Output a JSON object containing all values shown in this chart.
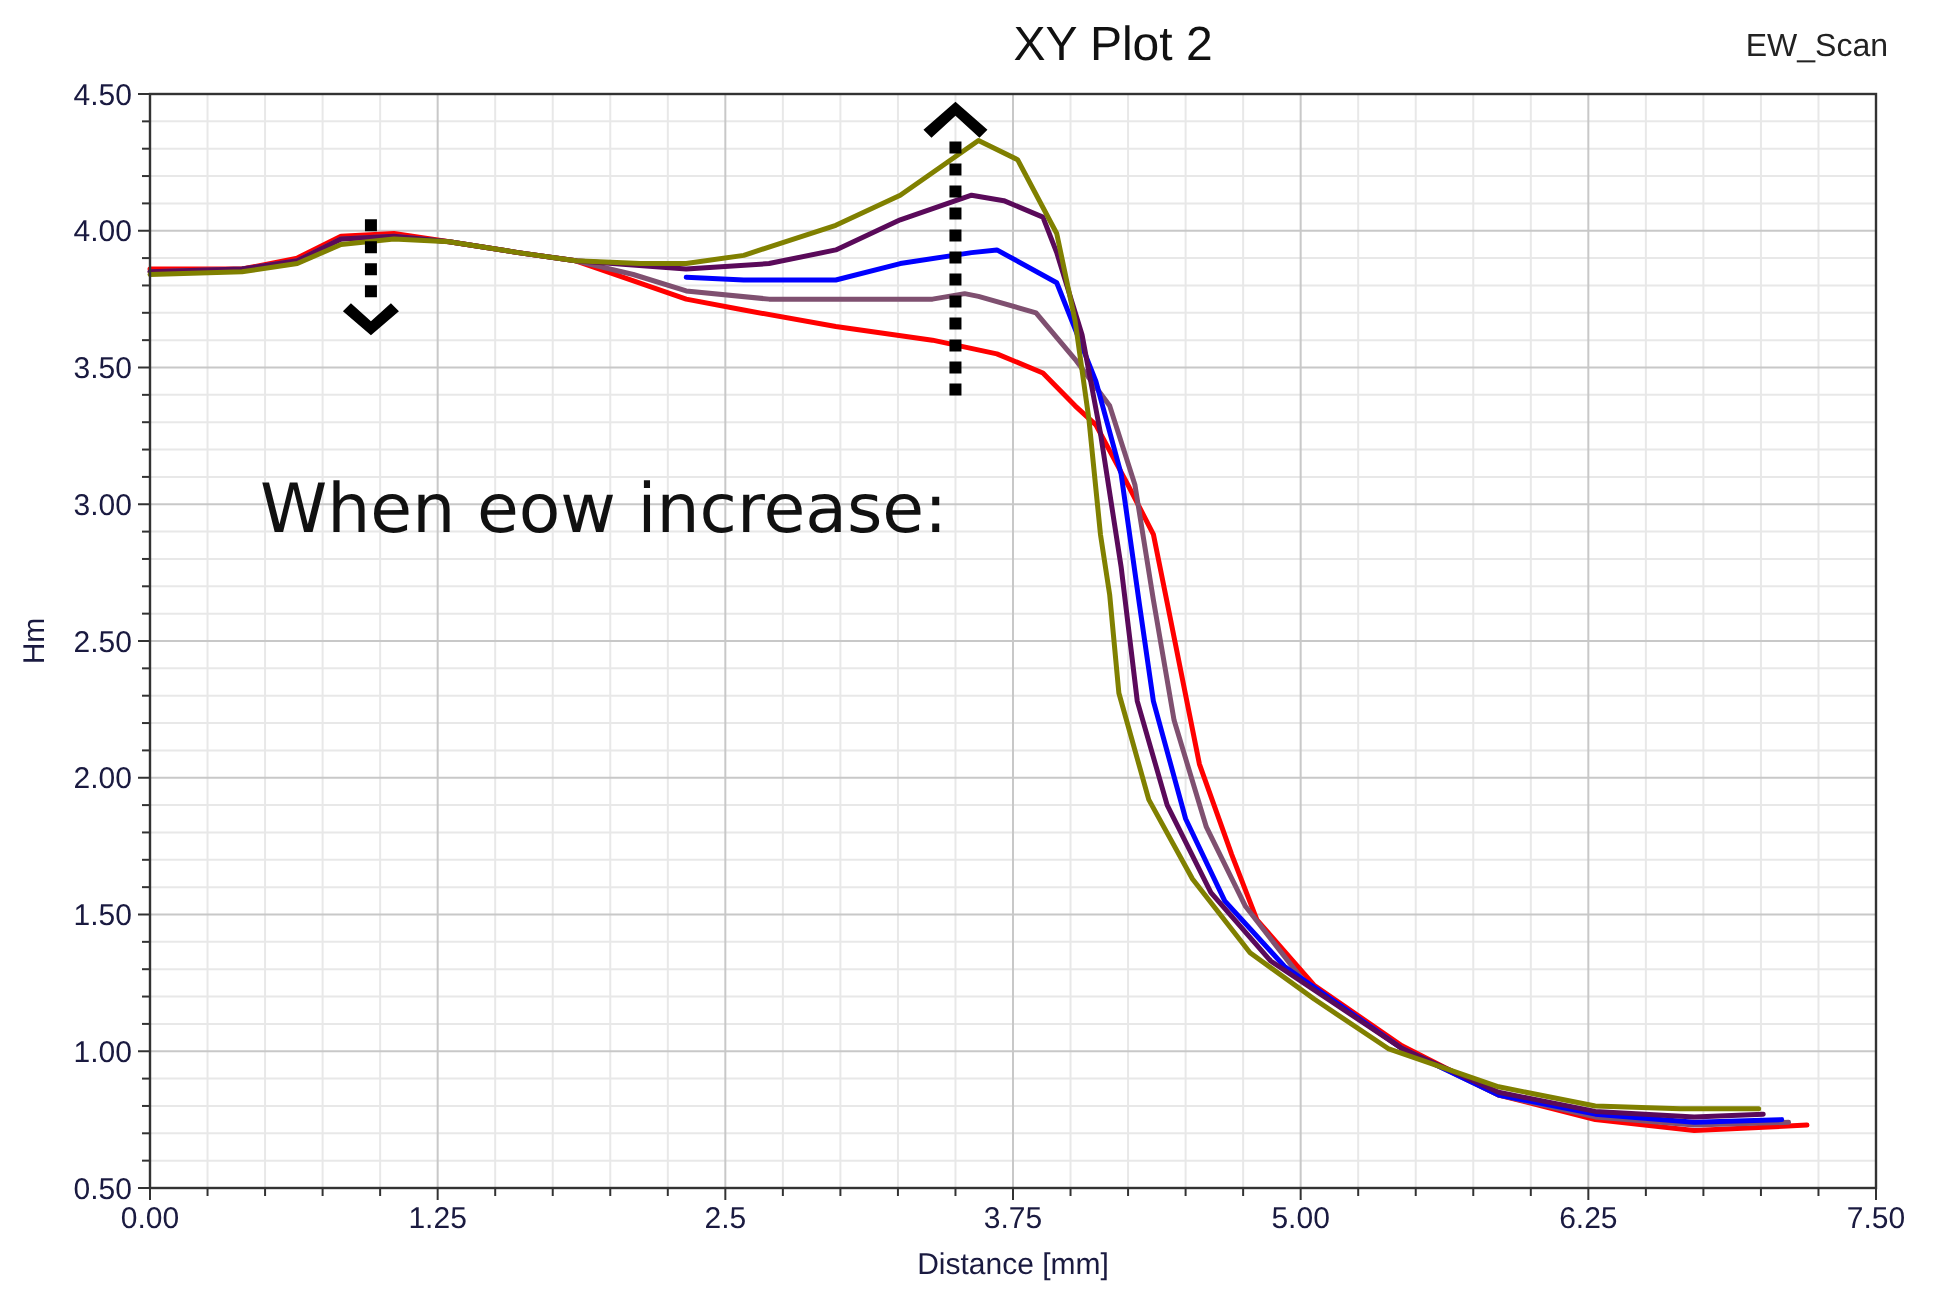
{
  "chart_data": {
    "type": "line",
    "title": "XY Plot 2",
    "xlabel": "Distance [mm]",
    "ylabel": "Hm",
    "legend_title": "EW_Scan",
    "grid": true,
    "line_style": "solid",
    "marker": "none",
    "xlim": [
      0,
      7.5
    ],
    "ylim": [
      0.5,
      4.5
    ],
    "xticks": [
      {
        "value": 0,
        "label": "0.00"
      },
      1.25,
      2.5,
      3.75,
      {
        "value": 5,
        "label": "5.00"
      },
      6.25,
      {
        "value": 7.5,
        "label": "7.50"
      }
    ],
    "yticks": [
      {
        "value": 0.5,
        "label": "0.50"
      },
      {
        "value": 1,
        "label": "1.00"
      },
      {
        "value": 1.5,
        "label": "1.50"
      },
      {
        "value": 2,
        "label": "2.00"
      },
      {
        "value": 2.5,
        "label": "2.50"
      },
      {
        "value": 3,
        "label": "3.00"
      },
      {
        "value": 3.5,
        "label": "3.50"
      },
      {
        "value": 4,
        "label": "4.00"
      },
      {
        "value": 4.5,
        "label": "4.50"
      }
    ],
    "annotations": [
      "When eow increase:"
    ],
    "series": [
      {
        "color": "#ff0000",
        "x": [
          0,
          0.4,
          0.64,
          0.83,
          1.06,
          1.3,
          1.6,
          1.85,
          2.33,
          2.58,
          2.98,
          3.4,
          3.68,
          3.88,
          4.02,
          4.11,
          4.25,
          4.36,
          4.42,
          4.56,
          4.7,
          4.81,
          5.06,
          5.44,
          5.86,
          6.28,
          6.71,
          7.2
        ],
        "values": [
          3.86,
          3.86,
          3.9,
          3.98,
          3.99,
          3.96,
          3.92,
          3.89,
          3.75,
          3.71,
          3.65,
          3.6,
          3.55,
          3.48,
          3.36,
          3.29,
          3.07,
          2.89,
          2.64,
          2.05,
          1.72,
          1.48,
          1.24,
          1.02,
          0.84,
          0.75,
          0.71,
          0.73
        ]
      },
      {
        "color": "#7f5070",
        "x": [
          0,
          0.4,
          0.64,
          0.83,
          1.06,
          1.3,
          1.6,
          1.85,
          2.1,
          2.33,
          2.69,
          3.4,
          3.54,
          3.6,
          3.85,
          4.02,
          4.17,
          4.28,
          4.36,
          4.45,
          4.59,
          4.76,
          5.01,
          5.44,
          5.86,
          6.28,
          6.71,
          7.12
        ],
        "values": [
          3.85,
          3.86,
          3.89,
          3.97,
          3.98,
          3.96,
          3.92,
          3.89,
          3.84,
          3.78,
          3.75,
          3.75,
          3.77,
          3.76,
          3.7,
          3.53,
          3.36,
          3.07,
          2.65,
          2.21,
          1.82,
          1.53,
          1.26,
          1.01,
          0.84,
          0.76,
          0.73,
          0.74
        ]
      },
      {
        "color": "#0000ff",
        "x": [
          2.33,
          2.58,
          2.98,
          3.26,
          3.57,
          3.68,
          3.94,
          4.11,
          4.22,
          4.3,
          4.36,
          4.5,
          4.67,
          4.93,
          5.44,
          5.86,
          6.28,
          6.71,
          7.09
        ],
        "values": [
          3.83,
          3.82,
          3.82,
          3.88,
          3.92,
          3.93,
          3.81,
          3.45,
          3.11,
          2.63,
          2.28,
          1.85,
          1.55,
          1.31,
          1.01,
          0.84,
          0.77,
          0.74,
          0.75
        ]
      },
      {
        "color": "#5a0a5a",
        "x": [
          0,
          0.4,
          0.64,
          0.83,
          1.06,
          1.3,
          1.6,
          1.85,
          2.33,
          2.69,
          2.98,
          3.26,
          3.57,
          3.71,
          3.88,
          3.94,
          4.05,
          4.13,
          4.22,
          4.29,
          4.42,
          4.61,
          4.87,
          5.44,
          5.86,
          6.28,
          6.71,
          7.01
        ],
        "values": [
          3.85,
          3.86,
          3.89,
          3.97,
          3.98,
          3.96,
          3.92,
          3.89,
          3.86,
          3.88,
          3.93,
          4.04,
          4.13,
          4.11,
          4.05,
          3.92,
          3.62,
          3.26,
          2.77,
          2.28,
          1.9,
          1.58,
          1.33,
          1.01,
          0.85,
          0.78,
          0.76,
          0.77
        ]
      },
      {
        "color": "#808000",
        "x": [
          0,
          0.4,
          0.64,
          0.83,
          1.06,
          1.3,
          1.6,
          1.85,
          2.13,
          2.33,
          2.58,
          2.98,
          3.26,
          3.6,
          3.77,
          3.94,
          4.02,
          4.08,
          4.13,
          4.17,
          4.21,
          4.34,
          4.53,
          4.78,
          5.06,
          5.38,
          5.86,
          6.28,
          6.65,
          6.99
        ],
        "values": [
          3.84,
          3.85,
          3.88,
          3.95,
          3.97,
          3.96,
          3.92,
          3.89,
          3.88,
          3.88,
          3.91,
          4.02,
          4.13,
          4.33,
          4.26,
          3.99,
          3.67,
          3.31,
          2.89,
          2.67,
          2.31,
          1.92,
          1.63,
          1.36,
          1.19,
          1.01,
          0.87,
          0.8,
          0.79,
          0.79
        ]
      }
    ]
  }
}
